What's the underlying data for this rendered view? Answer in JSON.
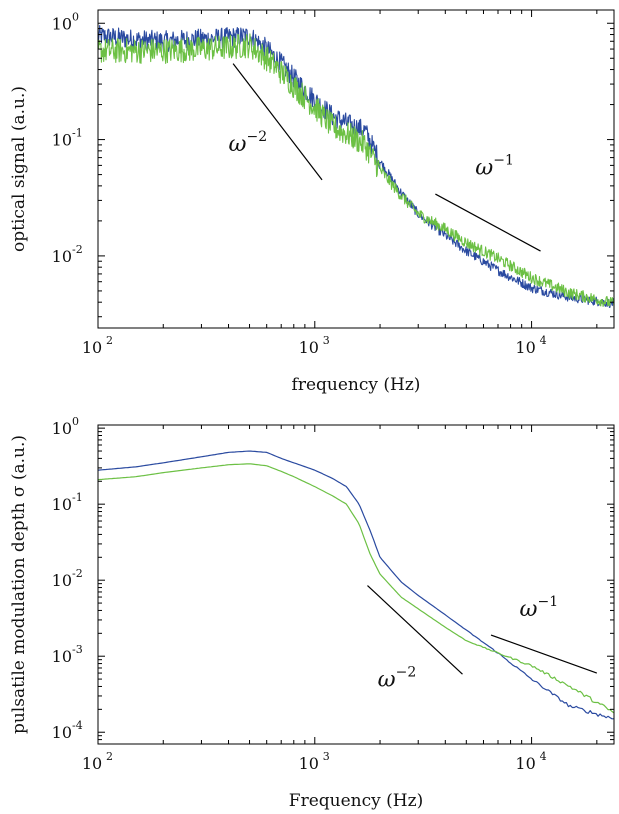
{
  "chart_data": [
    {
      "type": "line",
      "title": "",
      "xlabel": "frequency (Hz)",
      "ylabel": "optical signal (a.u.)",
      "xscale": "log",
      "yscale": "log",
      "xlim": [
        100,
        24000
      ],
      "ylim": [
        0.0024,
        1.3
      ],
      "grid": false,
      "xticks": [
        {
          "base": "10",
          "exp": "2",
          "value": 100
        },
        {
          "base": "10",
          "exp": "3",
          "value": 1000
        },
        {
          "base": "10",
          "exp": "4",
          "value": 10000
        }
      ],
      "yticks": [
        {
          "base": "10",
          "exp": "0",
          "value": 1
        },
        {
          "base": "10",
          "exp": "-1",
          "value": 0.1
        },
        {
          "base": "10",
          "exp": "-2",
          "value": 0.01
        }
      ],
      "series": [
        {
          "color": "#2a4aa0",
          "noise": 0.18,
          "x": [
            100,
            150,
            200,
            300,
            400,
            500,
            600,
            700,
            800,
            1000,
            1200,
            1500,
            1700,
            2000,
            2500,
            3000,
            4000,
            5000,
            7000,
            10000,
            15000,
            24000
          ],
          "y": [
            0.78,
            0.72,
            0.7,
            0.73,
            0.75,
            0.78,
            0.6,
            0.45,
            0.34,
            0.22,
            0.16,
            0.13,
            0.12,
            0.065,
            0.035,
            0.023,
            0.015,
            0.011,
            0.0075,
            0.0053,
            0.0044,
            0.0039
          ]
        },
        {
          "color": "#6cc044",
          "noise": 0.22,
          "x": [
            100,
            150,
            200,
            300,
            400,
            500,
            600,
            700,
            800,
            1000,
            1200,
            1500,
            1700,
            2000,
            2500,
            3000,
            4000,
            5000,
            7000,
            10000,
            15000,
            24000
          ],
          "y": [
            0.58,
            0.58,
            0.58,
            0.6,
            0.62,
            0.65,
            0.5,
            0.38,
            0.29,
            0.19,
            0.13,
            0.105,
            0.09,
            0.055,
            0.033,
            0.023,
            0.017,
            0.013,
            0.0095,
            0.0065,
            0.0048,
            0.0039
          ]
        }
      ],
      "annotations": [
        {
          "text": "ω",
          "sup": "−2",
          "x": 400,
          "y": 0.08,
          "line": [
            [
              420,
              0.45
            ],
            [
              1080,
              0.045
            ]
          ]
        },
        {
          "text": "ω",
          "sup": "−1",
          "x": 5500,
          "y": 0.05,
          "line": [
            [
              3600,
              0.034
            ],
            [
              11000,
              0.011
            ]
          ]
        }
      ]
    },
    {
      "type": "line",
      "title": "",
      "xlabel": "Frequency (Hz)",
      "ylabel": "pulsatile modulation depth σ (a.u.)",
      "xscale": "log",
      "yscale": "log",
      "xlim": [
        100,
        24000
      ],
      "ylim": [
        7e-05,
        1.1
      ],
      "grid": false,
      "xticks": [
        {
          "base": "10",
          "exp": "2",
          "value": 100
        },
        {
          "base": "10",
          "exp": "3",
          "value": 1000
        },
        {
          "base": "10",
          "exp": "4",
          "value": 10000
        }
      ],
      "yticks": [
        {
          "base": "10",
          "exp": "0",
          "value": 1
        },
        {
          "base": "10",
          "exp": "-1",
          "value": 0.1
        },
        {
          "base": "10",
          "exp": "-2",
          "value": 0.01
        },
        {
          "base": "10",
          "exp": "-3",
          "value": 0.001
        },
        {
          "base": "10",
          "exp": "-4",
          "value": 0.0001
        }
      ],
      "series": [
        {
          "color": "#2a4aa0",
          "noise": 0.0,
          "x": [
            100,
            150,
            200,
            300,
            400,
            500,
            600,
            700,
            800,
            1000,
            1200,
            1400,
            1600,
            1800,
            2000,
            2500,
            3000,
            4000,
            5000,
            7000,
            10000,
            15000,
            24000
          ],
          "y": [
            0.28,
            0.31,
            0.35,
            0.42,
            0.48,
            0.5,
            0.48,
            0.4,
            0.35,
            0.28,
            0.22,
            0.17,
            0.1,
            0.045,
            0.02,
            0.0095,
            0.0063,
            0.0035,
            0.0022,
            0.0011,
            0.0005,
            0.00022,
            0.00015
          ]
        },
        {
          "color": "#6cc044",
          "noise": 0.0,
          "x": [
            100,
            150,
            200,
            300,
            400,
            500,
            600,
            700,
            800,
            1000,
            1200,
            1400,
            1600,
            1800,
            2000,
            2500,
            3000,
            4000,
            5000,
            7000,
            10000,
            15000,
            24000
          ],
          "y": [
            0.21,
            0.23,
            0.26,
            0.3,
            0.33,
            0.34,
            0.32,
            0.27,
            0.23,
            0.17,
            0.13,
            0.1,
            0.055,
            0.022,
            0.012,
            0.006,
            0.0042,
            0.0024,
            0.0016,
            0.0011,
            0.00075,
            0.0004,
            0.00018
          ]
        }
      ],
      "annotations": [
        {
          "text": "ω",
          "sup": "−2",
          "x": 1950,
          "y": 0.0004,
          "line": [
            [
              1750,
              0.0085
            ],
            [
              4800,
              0.00058
            ]
          ]
        },
        {
          "text": "ω",
          "sup": "−1",
          "x": 8800,
          "y": 0.0034,
          "line": [
            [
              6500,
              0.0019
            ],
            [
              20000,
              0.0006
            ]
          ]
        }
      ]
    }
  ]
}
